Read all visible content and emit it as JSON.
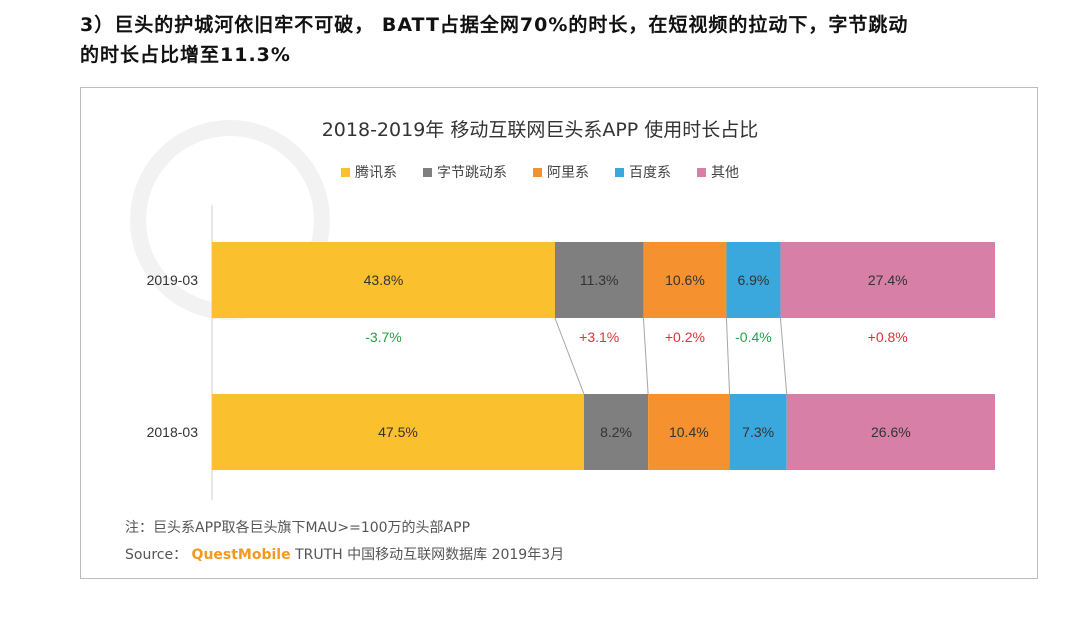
{
  "headline": {
    "line1": "3）巨头的护城河依旧牢不可破， BATT占据全网70%的时长，在短视频的拉动下，字节跳动",
    "line2": "的时长占比增至11.3%"
  },
  "footer": {
    "note": "注：巨头系APP取各巨头旗下MAU>=100万的头部APP",
    "source_label": "Source：",
    "source_brand": "QuestMobile",
    "source_text": "TRUTH 中国移动互联网数据库 2019年3月"
  },
  "colors": {
    "tencent": "#fbc02d",
    "bytedance": "#7f7f7f",
    "alibaba": "#f5922f",
    "baidu": "#3aa8dc",
    "other": "#d77fa6",
    "positive": "#e0303a",
    "negative": "#27a048"
  },
  "chart_data": {
    "type": "bar",
    "orientation": "horizontal",
    "stacked": true,
    "normalized": true,
    "title": "2018-2019年 移动互联网巨头系APP 使用时长占比",
    "legend_position": "top",
    "categories": [
      "2019-03",
      "2018-03"
    ],
    "series": [
      {
        "name": "腾讯系",
        "values": [
          43.8,
          47.5
        ],
        "color": "#fbc02d",
        "change": "-3.7%"
      },
      {
        "name": "字节跳动系",
        "values": [
          11.3,
          8.2
        ],
        "color": "#7f7f7f",
        "change": "+3.1%"
      },
      {
        "name": "阿里系",
        "values": [
          10.6,
          10.4
        ],
        "color": "#f5922f",
        "change": "+0.2%"
      },
      {
        "name": "百度系",
        "values": [
          6.9,
          7.3
        ],
        "color": "#3aa8dc",
        "change": "-0.4%"
      },
      {
        "name": "其他",
        "values": [
          27.4,
          26.6
        ],
        "color": "#d77fa6",
        "change": "+0.8%"
      }
    ],
    "value_labels": [
      [
        "43.8%",
        "11.3%",
        "10.6%",
        "6.9%",
        "27.4%"
      ],
      [
        "47.5%",
        "8.2%",
        "10.4%",
        "7.3%",
        "26.6%"
      ]
    ]
  }
}
